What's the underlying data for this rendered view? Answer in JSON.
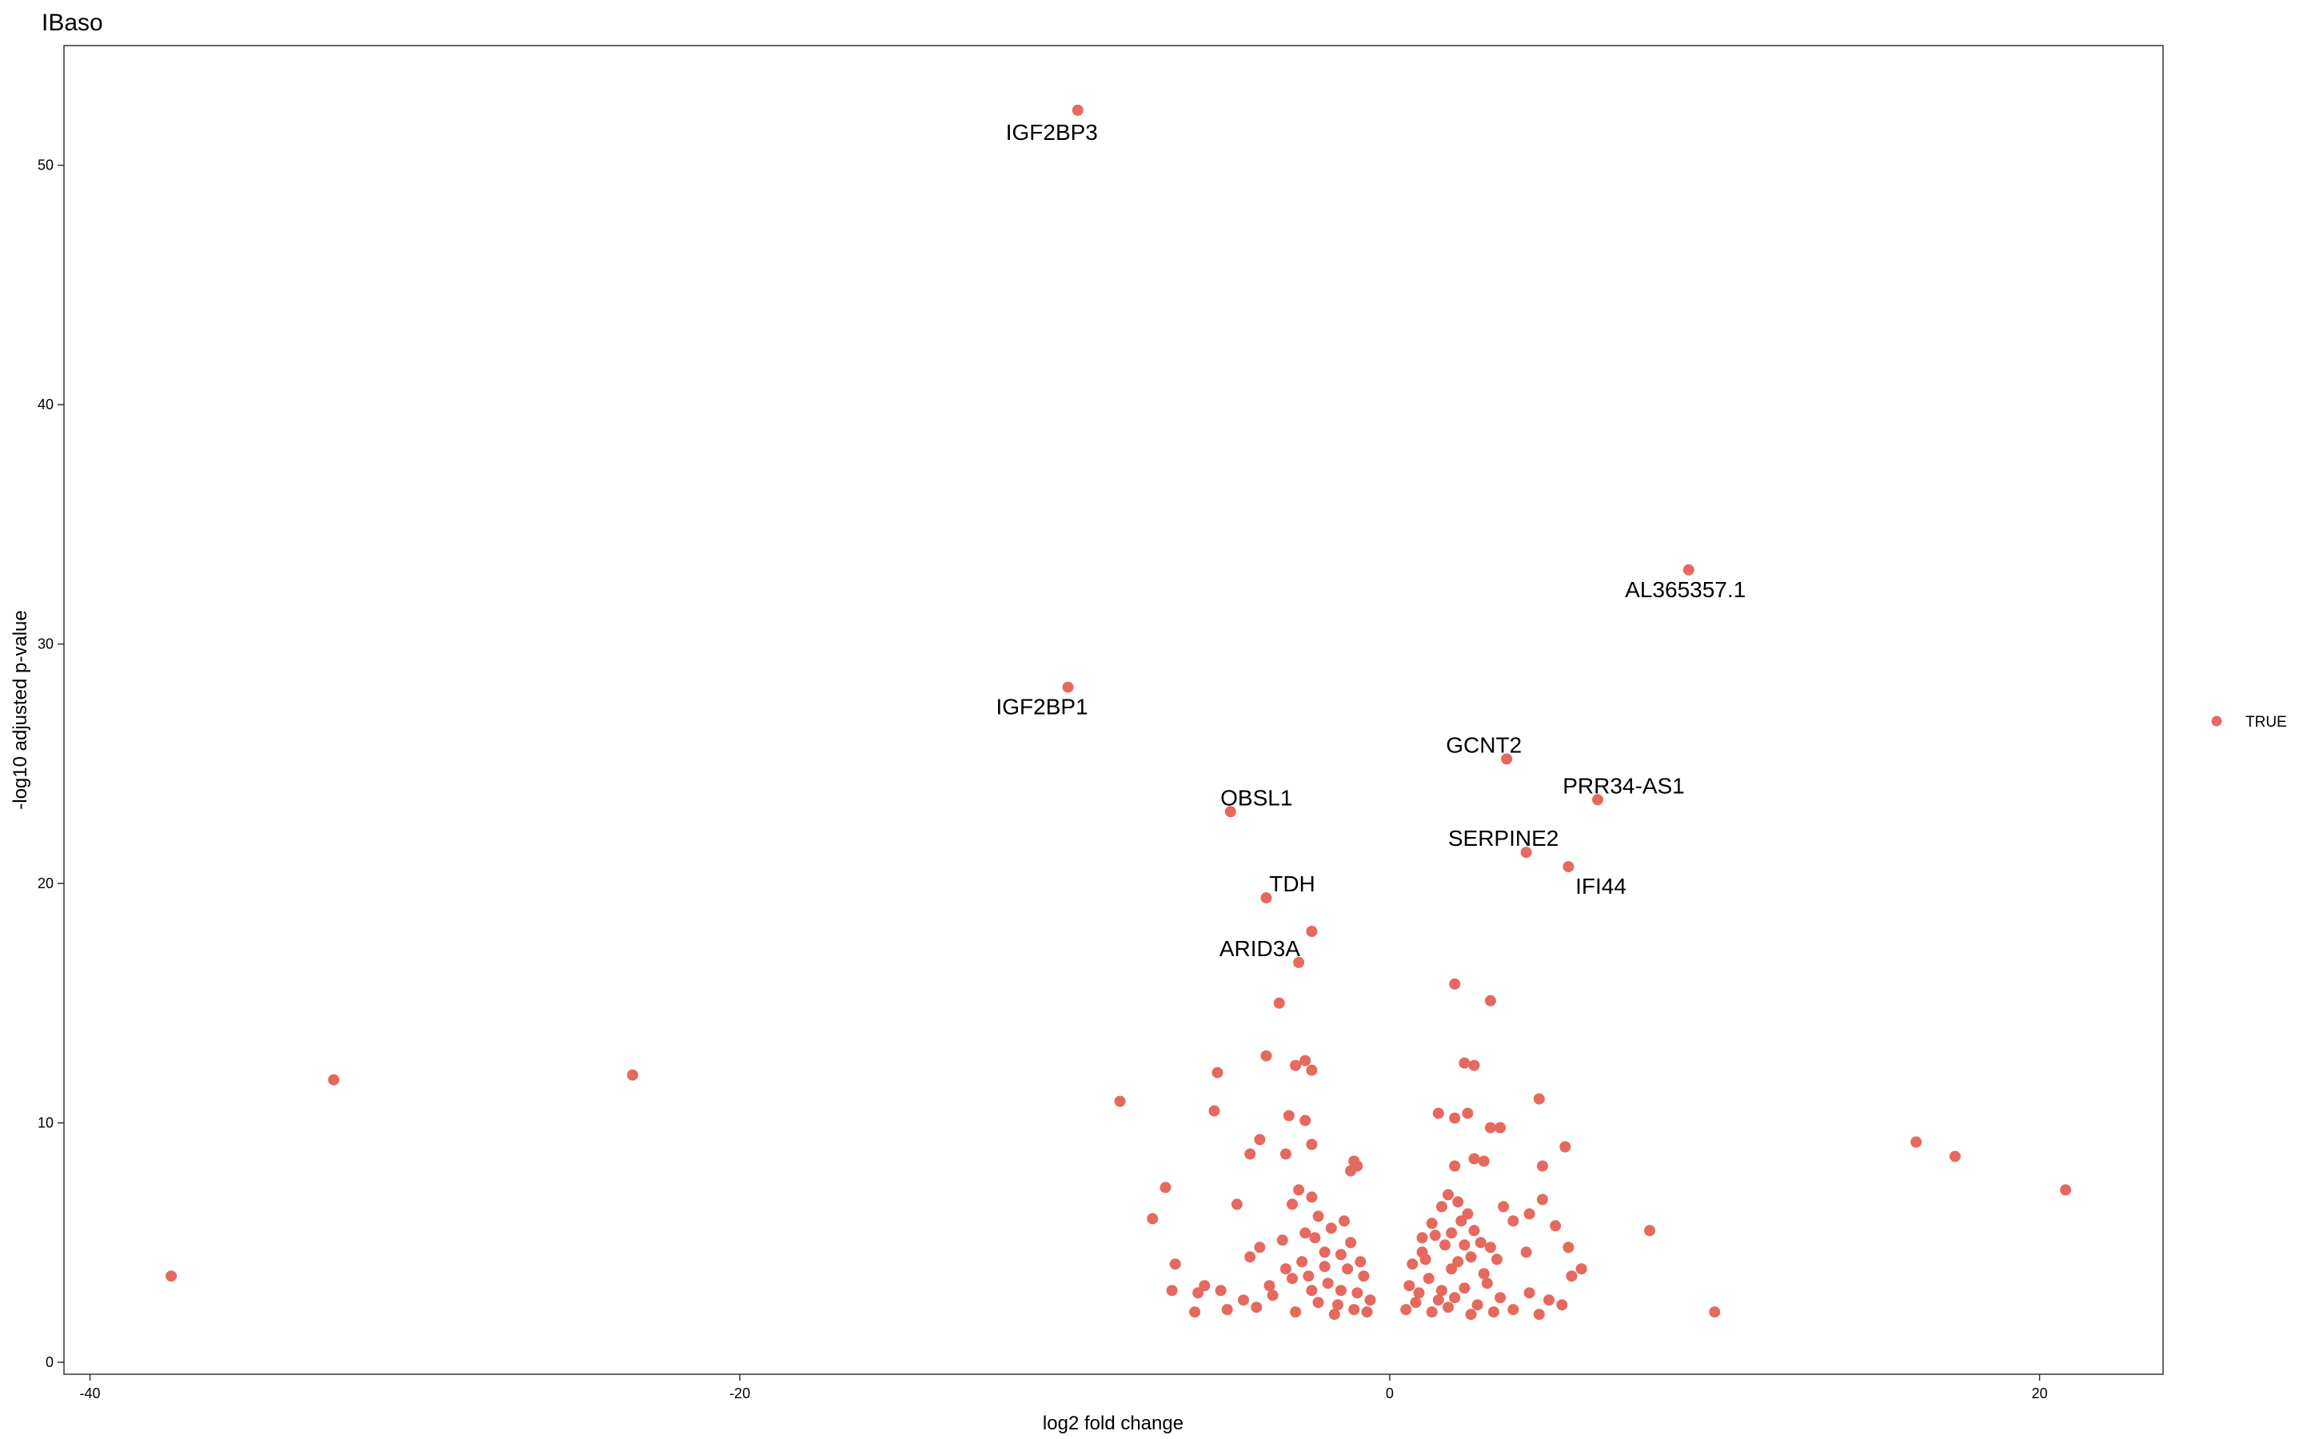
{
  "chart_data": {
    "type": "scatter",
    "title": "IBaso",
    "xlabel": "log2 fold change",
    "ylabel": "-log10 adjusted p-value",
    "xlim": [
      -40.8,
      23.8
    ],
    "ylim": [
      -0.5,
      55.0
    ],
    "x_ticks": [
      -40,
      -20,
      0,
      20
    ],
    "y_ticks": [
      0,
      10,
      20,
      30,
      40,
      50
    ],
    "grid": false,
    "point_color": "#E5695F",
    "legend": {
      "position": "right",
      "entries": [
        {
          "label": "TRUE",
          "color": "#E5695F"
        }
      ]
    },
    "labeled_points": [
      {
        "label": "IGF2BP3",
        "x": -9.6,
        "y": 52.3,
        "label_dx": -0.8,
        "label_dy": -0.9
      },
      {
        "label": "AL365357.1",
        "x": 9.2,
        "y": 33.1,
        "label_dx": -0.1,
        "label_dy": -0.8
      },
      {
        "label": "IGF2BP1",
        "x": -9.9,
        "y": 28.2,
        "label_dx": -0.8,
        "label_dy": -0.8
      },
      {
        "label": "GCNT2",
        "x": 3.6,
        "y": 25.2,
        "label_dx": -0.7,
        "label_dy": 0.6
      },
      {
        "label": "PRR34-AS1",
        "x": 6.4,
        "y": 23.5,
        "label_dx": 0.8,
        "label_dy": 0.6
      },
      {
        "label": "OBSL1",
        "x": -4.9,
        "y": 23.0,
        "label_dx": 0.8,
        "label_dy": 0.6
      },
      {
        "label": "SERPINE2",
        "x": 4.2,
        "y": 21.3,
        "label_dx": -0.7,
        "label_dy": 0.6
      },
      {
        "label": "IFI44",
        "x": 5.5,
        "y": 20.7,
        "label_dx": 1.0,
        "label_dy": -0.8
      },
      {
        "label": "TDH",
        "x": -3.8,
        "y": 19.4,
        "label_dx": 0.8,
        "label_dy": 0.6
      },
      {
        "label": "ARID3A",
        "x": -2.8,
        "y": 16.7,
        "label_dx": -1.2,
        "label_dy": 0.6
      }
    ],
    "points": [
      {
        "x": -9.6,
        "y": 52.3
      },
      {
        "x": 9.2,
        "y": 33.1
      },
      {
        "x": -9.9,
        "y": 28.2
      },
      {
        "x": 3.6,
        "y": 25.2
      },
      {
        "x": 6.4,
        "y": 23.5
      },
      {
        "x": -4.9,
        "y": 23.0
      },
      {
        "x": 4.2,
        "y": 21.3
      },
      {
        "x": 5.5,
        "y": 20.7
      },
      {
        "x": -3.8,
        "y": 19.4
      },
      {
        "x": -2.4,
        "y": 18.0
      },
      {
        "x": -2.8,
        "y": 16.7
      },
      {
        "x": 2.0,
        "y": 15.8
      },
      {
        "x": 3.1,
        "y": 15.1
      },
      {
        "x": -3.4,
        "y": 15.0
      },
      {
        "x": -3.8,
        "y": 12.8
      },
      {
        "x": -2.9,
        "y": 12.4
      },
      {
        "x": -2.6,
        "y": 12.6
      },
      {
        "x": -2.4,
        "y": 12.2
      },
      {
        "x": 2.3,
        "y": 12.5
      },
      {
        "x": 2.6,
        "y": 12.4
      },
      {
        "x": -5.3,
        "y": 12.1
      },
      {
        "x": -32.5,
        "y": 11.8
      },
      {
        "x": -23.3,
        "y": 12.0
      },
      {
        "x": 4.6,
        "y": 11.0
      },
      {
        "x": -8.3,
        "y": 10.9
      },
      {
        "x": -5.4,
        "y": 10.5
      },
      {
        "x": 1.5,
        "y": 10.4
      },
      {
        "x": 2.0,
        "y": 10.2
      },
      {
        "x": 2.4,
        "y": 10.4
      },
      {
        "x": 3.1,
        "y": 9.8
      },
      {
        "x": 3.4,
        "y": 9.8
      },
      {
        "x": -3.1,
        "y": 10.3
      },
      {
        "x": -2.6,
        "y": 10.1
      },
      {
        "x": -4.0,
        "y": 9.3
      },
      {
        "x": -2.4,
        "y": 9.1
      },
      {
        "x": -4.3,
        "y": 8.7
      },
      {
        "x": -3.2,
        "y": 8.7
      },
      {
        "x": 5.4,
        "y": 9.0
      },
      {
        "x": 16.2,
        "y": 9.2
      },
      {
        "x": 17.4,
        "y": 8.6
      },
      {
        "x": 2.6,
        "y": 8.5
      },
      {
        "x": 2.9,
        "y": 8.4
      },
      {
        "x": 2.0,
        "y": 8.2
      },
      {
        "x": 4.7,
        "y": 8.2
      },
      {
        "x": -1.0,
        "y": 8.2
      },
      {
        "x": -1.2,
        "y": 8.0
      },
      {
        "x": -1.1,
        "y": 8.4
      },
      {
        "x": -6.9,
        "y": 7.3
      },
      {
        "x": 20.8,
        "y": 7.2
      },
      {
        "x": -7.3,
        "y": 6.0
      },
      {
        "x": -4.7,
        "y": 6.6
      },
      {
        "x": 8.0,
        "y": 5.5
      },
      {
        "x": 4.3,
        "y": 6.2
      },
      {
        "x": 4.7,
        "y": 6.8
      },
      {
        "x": 3.5,
        "y": 6.5
      },
      {
        "x": 3.8,
        "y": 5.9
      },
      {
        "x": 5.1,
        "y": 5.7
      },
      {
        "x": 5.5,
        "y": 4.8
      },
      {
        "x": 3.1,
        "y": 4.8
      },
      {
        "x": 4.2,
        "y": 4.6
      },
      {
        "x": 1.8,
        "y": 7.0
      },
      {
        "x": 2.1,
        "y": 6.7
      },
      {
        "x": 1.6,
        "y": 6.5
      },
      {
        "x": 1.3,
        "y": 5.8
      },
      {
        "x": 2.4,
        "y": 6.2
      },
      {
        "x": 2.6,
        "y": 5.5
      },
      {
        "x": 2.8,
        "y": 5.0
      },
      {
        "x": 1.0,
        "y": 4.6
      },
      {
        "x": 1.4,
        "y": 5.3
      },
      {
        "x": 2.2,
        "y": 5.9
      },
      {
        "x": 1.7,
        "y": 4.9
      },
      {
        "x": 2.5,
        "y": 4.4
      },
      {
        "x": -2.8,
        "y": 7.2
      },
      {
        "x": -2.4,
        "y": 6.9
      },
      {
        "x": -3.0,
        "y": 6.6
      },
      {
        "x": -2.2,
        "y": 6.1
      },
      {
        "x": -1.8,
        "y": 5.6
      },
      {
        "x": -1.4,
        "y": 5.9
      },
      {
        "x": -2.6,
        "y": 5.4
      },
      {
        "x": -3.3,
        "y": 5.1
      },
      {
        "x": -1.2,
        "y": 5.0
      },
      {
        "x": -4.0,
        "y": 4.8
      },
      {
        "x": -4.3,
        "y": 4.4
      },
      {
        "x": -2.0,
        "y": 4.6
      },
      {
        "x": -6.6,
        "y": 4.1
      },
      {
        "x": -5.7,
        "y": 3.2
      },
      {
        "x": -5.2,
        "y": 3.0
      },
      {
        "x": -6.7,
        "y": 3.0
      },
      {
        "x": -5.9,
        "y": 2.9
      },
      {
        "x": -4.5,
        "y": 2.6
      },
      {
        "x": -5.0,
        "y": 2.2
      },
      {
        "x": -6.0,
        "y": 2.1
      },
      {
        "x": -3.2,
        "y": 3.9
      },
      {
        "x": -2.5,
        "y": 3.6
      },
      {
        "x": -1.9,
        "y": 3.3
      },
      {
        "x": -1.5,
        "y": 3.0
      },
      {
        "x": -0.8,
        "y": 3.6
      },
      {
        "x": -0.6,
        "y": 2.6
      },
      {
        "x": -1.1,
        "y": 2.2
      },
      {
        "x": -2.2,
        "y": 2.5
      },
      {
        "x": -3.6,
        "y": 2.8
      },
      {
        "x": -4.1,
        "y": 2.3
      },
      {
        "x": -2.9,
        "y": 2.1
      },
      {
        "x": -1.7,
        "y": 2.0
      },
      {
        "x": 0.5,
        "y": 2.2
      },
      {
        "x": 0.9,
        "y": 2.9
      },
      {
        "x": 1.2,
        "y": 3.5
      },
      {
        "x": 1.5,
        "y": 2.6
      },
      {
        "x": 1.9,
        "y": 3.9
      },
      {
        "x": 2.3,
        "y": 3.1
      },
      {
        "x": 2.7,
        "y": 2.4
      },
      {
        "x": 3.0,
        "y": 3.3
      },
      {
        "x": 3.4,
        "y": 2.7
      },
      {
        "x": 3.8,
        "y": 2.2
      },
      {
        "x": 4.3,
        "y": 2.9
      },
      {
        "x": 4.6,
        "y": 2.0
      },
      {
        "x": 4.9,
        "y": 2.6
      },
      {
        "x": 5.3,
        "y": 2.4
      },
      {
        "x": 5.6,
        "y": 3.6
      },
      {
        "x": 5.9,
        "y": 3.9
      },
      {
        "x": 0.7,
        "y": 4.1
      },
      {
        "x": 1.1,
        "y": 4.3
      },
      {
        "x": 2.1,
        "y": 4.2
      },
      {
        "x": 2.9,
        "y": 3.7
      },
      {
        "x": 0.8,
        "y": 2.5
      },
      {
        "x": 1.3,
        "y": 2.1
      },
      {
        "x": 1.8,
        "y": 2.3
      },
      {
        "x": 2.5,
        "y": 2.0
      },
      {
        "x": 0.6,
        "y": 3.2
      },
      {
        "x": 1.6,
        "y": 3.0
      },
      {
        "x": 2.0,
        "y": 2.7
      },
      {
        "x": 3.2,
        "y": 2.1
      },
      {
        "x": -0.9,
        "y": 4.2
      },
      {
        "x": -1.3,
        "y": 3.9
      },
      {
        "x": -2.0,
        "y": 4.0
      },
      {
        "x": -2.7,
        "y": 4.2
      },
      {
        "x": -0.7,
        "y": 2.1
      },
      {
        "x": -1.0,
        "y": 2.9
      },
      {
        "x": -1.6,
        "y": 2.4
      },
      {
        "x": -2.4,
        "y": 3.0
      },
      {
        "x": -37.5,
        "y": 3.6
      },
      {
        "x": 10.0,
        "y": 2.1
      },
      {
        "x": 1.0,
        "y": 5.2
      },
      {
        "x": 1.9,
        "y": 5.4
      },
      {
        "x": 2.3,
        "y": 4.9
      },
      {
        "x": 3.3,
        "y": 4.3
      },
      {
        "x": -1.5,
        "y": 4.5
      },
      {
        "x": -2.3,
        "y": 5.2
      },
      {
        "x": -3.0,
        "y": 3.5
      },
      {
        "x": -3.7,
        "y": 3.2
      }
    ]
  }
}
